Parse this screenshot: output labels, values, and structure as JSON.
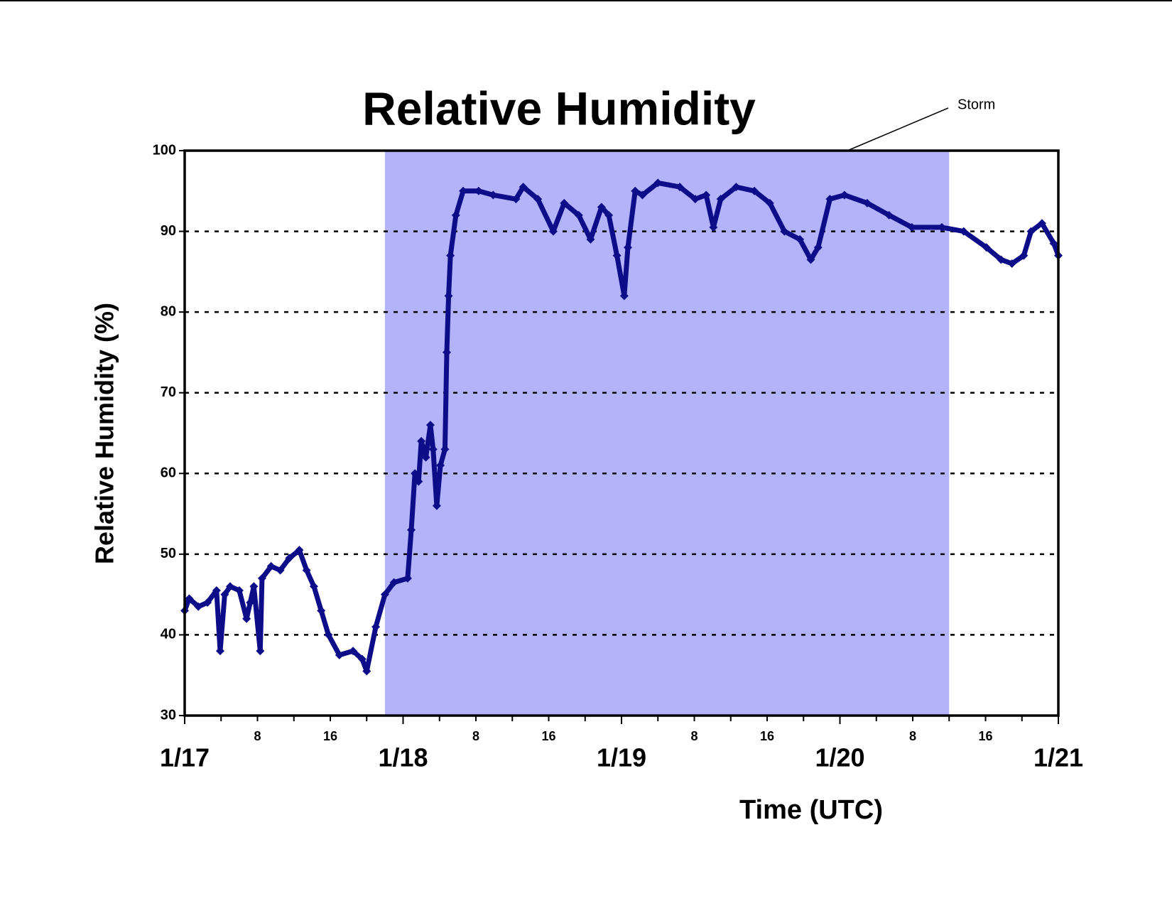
{
  "chart_data": {
    "type": "line",
    "title": "Relative Humidity",
    "x_label": "Time (UTC)",
    "y_label": "Relative Humidity (%)",
    "marker": "diamond",
    "grid": true,
    "xlim": [
      0,
      96
    ],
    "ylim": [
      30,
      100
    ],
    "yticks": [
      30,
      40,
      50,
      60,
      70,
      80,
      90,
      100
    ],
    "xticks": [
      {
        "value": 0,
        "label": "1/17"
      },
      {
        "value": 24,
        "label": "1/18"
      },
      {
        "value": 48,
        "label": "1/19"
      },
      {
        "value": 72,
        "label": "1/20"
      },
      {
        "value": 96,
        "label": "1/21"
      }
    ],
    "xminorticks": [
      {
        "value": 4,
        "label": null
      },
      8,
      {
        "value": 12,
        "label": null
      },
      16,
      {
        "value": 20,
        "label": null
      },
      {
        "value": 28,
        "label": null
      },
      {
        "value": 32,
        "label": "8"
      },
      {
        "value": 36,
        "label": null
      },
      {
        "value": 40,
        "label": "16"
      },
      {
        "value": 44,
        "label": null
      },
      {
        "value": 52,
        "label": null
      },
      {
        "value": 56,
        "label": "8"
      },
      {
        "value": 60,
        "label": null
      },
      {
        "value": 64,
        "label": "16"
      },
      {
        "value": 68,
        "label": null
      },
      {
        "value": 76,
        "label": null
      },
      {
        "value": 80,
        "label": "8"
      },
      {
        "value": 84,
        "label": null
      },
      {
        "value": 88,
        "label": "16"
      },
      {
        "value": 92,
        "label": null
      }
    ],
    "shade": {
      "x": [
        22,
        84
      ],
      "color": "#b3b3fa",
      "label": "Storm"
    },
    "series": [
      {
        "name": null,
        "color": "#0d0d8a",
        "x": [
          0,
          0.5,
          1.5,
          2.5,
          3.5,
          3.9,
          4.4,
          5,
          6,
          6.8,
          7.2,
          7.6,
          8.3,
          8.5,
          9.5,
          10.5,
          11.5,
          12.6,
          13.4,
          14.2,
          15,
          15.8,
          17,
          18.5,
          19.5,
          20,
          21,
          22,
          23,
          24.5,
          24.9,
          25.3,
          25.7,
          26,
          26.5,
          27,
          27.3,
          27.7,
          28.1,
          28.6,
          28.8,
          29,
          29.2,
          29.8,
          30.6,
          32.3,
          33.9,
          36.4,
          37.2,
          38.8,
          40.5,
          41.7,
          43.3,
          44.6,
          45.8,
          46.6,
          47.5,
          48.3,
          48.7,
          49.5,
          50.3,
          52,
          54.4,
          56.1,
          57.3,
          58.1,
          58.9,
          60.6,
          62.6,
          64.3,
          65.9,
          67.6,
          68.8,
          69.6,
          70.9,
          72.5,
          75,
          77.4,
          79.9,
          83.2,
          85.6,
          88.1,
          89.7,
          90.9,
          92.2,
          93,
          94.2,
          95.5,
          96
        ],
        "values": [
          43,
          44.5,
          43.5,
          44,
          45.5,
          38,
          45,
          46,
          45.5,
          42,
          44,
          46,
          38,
          47,
          48.5,
          48,
          49.5,
          50.5,
          48,
          46,
          43,
          40,
          37.5,
          38,
          37,
          35.5,
          41,
          45,
          46.5,
          47,
          53,
          60,
          59,
          64,
          62,
          66,
          63,
          56,
          61,
          63,
          75,
          82,
          87,
          92,
          95,
          95,
          94.5,
          94,
          95.5,
          94,
          90,
          93.5,
          92,
          89,
          93,
          92,
          87,
          82,
          88,
          95,
          94.5,
          96,
          95.5,
          94,
          94.5,
          90.5,
          94,
          95.5,
          95,
          93.5,
          90,
          89,
          86.5,
          88,
          94,
          94.5,
          93.5,
          92,
          90.5,
          90.5,
          90,
          88,
          86.5,
          86,
          87,
          90,
          91,
          88.5,
          87
        ]
      }
    ]
  }
}
